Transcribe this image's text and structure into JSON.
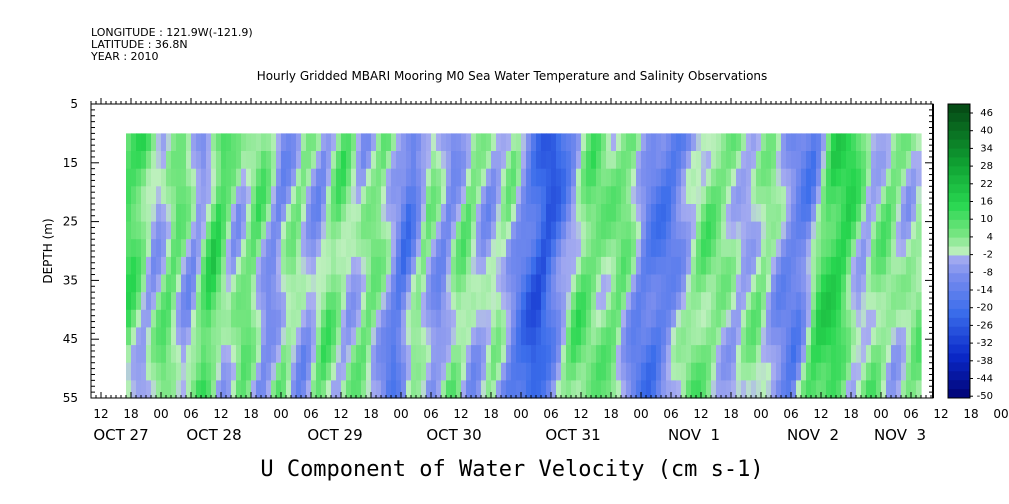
{
  "header": {
    "longitude": "LONGITUDE : 121.9W(-121.9)",
    "latitude": "LATITUDE : 36.8N",
    "year": "YEAR : 2010"
  },
  "chart_data": {
    "type": "heatmap",
    "title": "Hourly Gridded MBARI Mooring M0 Sea Water Temperature and Salinity Observations",
    "caption": "U Component of Water Velocity (cm s-1)",
    "ylabel": "DEPTH (m)",
    "y_axis": {
      "range": [
        5,
        55
      ],
      "inverted": true,
      "ticks": [
        5,
        15,
        25,
        35,
        45,
        55
      ],
      "data_depth_range": [
        10,
        55
      ]
    },
    "x_axis": {
      "hour_ticks": [
        "12",
        "18",
        "00",
        "06",
        "12",
        "18",
        "00",
        "06",
        "12",
        "18",
        "00",
        "06",
        "12",
        "18",
        "00",
        "06",
        "12",
        "18",
        "00",
        "06",
        "12",
        "18",
        "00",
        "06",
        "12",
        "18",
        "00",
        "06",
        "12",
        "18",
        "00",
        "06"
      ],
      "date_labels": [
        "OCT 27",
        "OCT 28",
        "OCT 29",
        "OCT 30",
        "OCT 31",
        "NOV  1",
        "NOV  2",
        "NOV  3"
      ],
      "data_start": "OCT 27 17:00"
    },
    "colorbar": {
      "labels": [
        "46",
        "40",
        "34",
        "28",
        "22",
        "16",
        "10",
        "4",
        "-2",
        "-8",
        "-14",
        "-20",
        "-26",
        "-32",
        "-38",
        "-44",
        "-50"
      ],
      "range": [
        -50,
        50
      ],
      "step": 3
    },
    "pattern_note": "Vertical bands alternating between positive (green) and negative (blue) velocity roughly every 6 hours, tidal signal",
    "band_values": [
      {
        "t": "OCT 27 18",
        "v": 12
      },
      {
        "t": "OCT 27 22",
        "v": -6
      },
      {
        "t": "OCT 28 02",
        "v": 10
      },
      {
        "t": "OCT 28 06",
        "v": -8
      },
      {
        "t": "OCT 28 10",
        "v": 16
      },
      {
        "t": "OCT 28 14",
        "v": -4
      },
      {
        "t": "OCT 28 18",
        "v": 10
      },
      {
        "t": "OCT 28 22",
        "v": -10
      },
      {
        "t": "OCT 29 02",
        "v": 6
      },
      {
        "t": "OCT 29 06",
        "v": -8
      },
      {
        "t": "OCT 29 10",
        "v": 10
      },
      {
        "t": "OCT 29 14",
        "v": -4
      },
      {
        "t": "OCT 29 18",
        "v": 8
      },
      {
        "t": "OCT 29 22",
        "v": -6
      },
      {
        "t": "OCT 30 00",
        "v": -18
      },
      {
        "t": "OCT 30 04",
        "v": 6
      },
      {
        "t": "OCT 30 08",
        "v": -10
      },
      {
        "t": "OCT 30 12",
        "v": 8
      },
      {
        "t": "OCT 30 16",
        "v": -6
      },
      {
        "t": "OCT 30 20",
        "v": 4
      },
      {
        "t": "OCT 31 00",
        "v": -14
      },
      {
        "t": "OCT 31 04",
        "v": -26
      },
      {
        "t": "OCT 31 08",
        "v": -8
      },
      {
        "t": "OCT 31 12",
        "v": 10
      },
      {
        "t": "OCT 31 16",
        "v": 4
      },
      {
        "t": "OCT 31 20",
        "v": 8
      },
      {
        "t": "NOV 1 00",
        "v": -12
      },
      {
        "t": "NOV 1 04",
        "v": -16
      },
      {
        "t": "NOV 1 08",
        "v": -4
      },
      {
        "t": "NOV 1 12",
        "v": 8
      },
      {
        "t": "NOV 1 16",
        "v": 4
      },
      {
        "t": "NOV 1 20",
        "v": -4
      },
      {
        "t": "NOV 2 00",
        "v": 6
      },
      {
        "t": "NOV 2 04",
        "v": -8
      },
      {
        "t": "NOV 2 08",
        "v": -14
      },
      {
        "t": "NOV 2 12",
        "v": 14
      },
      {
        "t": "NOV 2 16",
        "v": 16
      },
      {
        "t": "NOV 2 20",
        "v": -4
      },
      {
        "t": "NOV 3 00",
        "v": 8
      },
      {
        "t": "NOV 3 04",
        "v": -2
      },
      {
        "t": "NOV 3 08",
        "v": 6
      }
    ]
  }
}
